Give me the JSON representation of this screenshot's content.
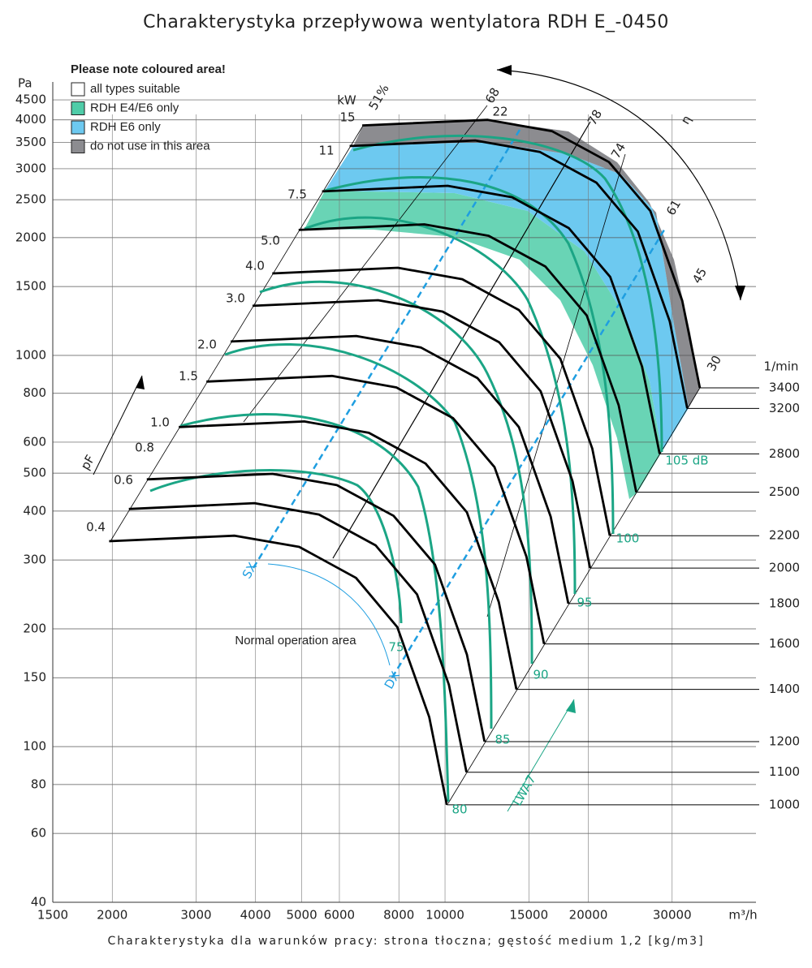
{
  "chart_data": {
    "type": "line",
    "title": "Charakterystyka przepływowa wentylatora RDH E_-0450",
    "footer": "Charakterystyka dla warunków pracy: strona tłoczna; gęstość medium 1,2 [kg/m3]",
    "x_label": "m³/h",
    "y_label": "Pa",
    "rpm_label": "1/min",
    "x_log": true,
    "y_log": true,
    "grid": true,
    "xlim": [
      1500,
      45000
    ],
    "ylim": [
      40,
      5000
    ],
    "xticks": [
      1500,
      2000,
      3000,
      4000,
      5000,
      6000,
      8000,
      10000,
      15000,
      20000,
      30000
    ],
    "yticks": [
      40,
      60,
      80,
      100,
      150,
      200,
      300,
      400,
      500,
      600,
      800,
      1000,
      1500,
      2000,
      2500,
      3000,
      3500,
      4000,
      4500
    ],
    "legend": {
      "title": "Please note coloured area!",
      "corner": "upper left",
      "items": [
        {
          "label": "all types suitable",
          "color": "#ffffff"
        },
        {
          "label": "RDH E4/E6 only",
          "color": "#4fcca8"
        },
        {
          "label": "RDH E6 only",
          "color": "#6dc9f0"
        },
        {
          "label": "do not use in this area",
          "color": "#8c8c90"
        }
      ]
    },
    "annotations": {
      "power_unit": "kW",
      "power_labels": [
        "0.4",
        "0.6",
        "0.8",
        "1.0",
        "1.5",
        "2.0",
        "3.0",
        "4.0",
        "5.0",
        "7.5",
        "11",
        "15",
        "22"
      ],
      "efficiency_labels": [
        "51%",
        "68",
        "78",
        "74",
        "61",
        "45",
        "30"
      ],
      "efficiency_symbol": "η",
      "sound_labels": [
        "75",
        "80",
        "85",
        "90",
        "95",
        "100",
        "105 dB"
      ],
      "sound_symbol": "LWA7",
      "pressure_symbol": "pF",
      "normal_area": "Normal operation area",
      "sx": "SX",
      "dx": "DX"
    },
    "series": [
      {
        "name": "3400",
        "color": "#000000",
        "x": [
          6700,
          12300,
          16800,
          22100,
          27000,
          31500,
          34300
        ],
        "values": [
          3870,
          4000,
          3740,
          3120,
          2340,
          1380,
          826
        ]
      },
      {
        "name": "3200",
        "color": "#000000",
        "x": [
          6306,
          11576,
          15812,
          20800,
          25410,
          29650,
          32280
        ],
        "values": [
          3428,
          3543,
          3313,
          2764,
          2073,
          1222,
          732
        ]
      },
      {
        "name": "2800",
        "color": "#000000",
        "x": [
          5517,
          10129,
          13835,
          18199,
          22235,
          25940,
          28246
        ],
        "values": [
          2625,
          2713,
          2536,
          2116,
          1587,
          936,
          560
        ]
      },
      {
        "name": "2500",
        "color": "#000000",
        "x": [
          4927,
          9044,
          12353,
          16250,
          19853,
          23162,
          25221
        ],
        "values": [
          2092,
          2163,
          2022,
          1687,
          1265,
          746,
          447
        ]
      },
      {
        "name": "2200",
        "color": "#000000",
        "x": [
          4336,
          7959,
          10871,
          14301,
          17472,
          20384,
          22196
        ],
        "values": [
          1620,
          1675,
          1566,
          1306,
          980,
          578,
          346
        ]
      },
      {
        "name": "2000",
        "color": "#000000",
        "x": [
          3941,
          7235,
          9882,
          13000,
          15881,
          18528,
          20175
        ],
        "values": [
          1339,
          1384,
          1294,
          1080,
          810,
          477,
          286
        ]
      },
      {
        "name": "1800",
        "color": "#000000",
        "x": [
          3547,
          6512,
          8894,
          11700,
          14294,
          16676,
          18158
        ],
        "values": [
          1085,
          1121,
          1048,
          875,
          656,
          387,
          232
        ]
      },
      {
        "name": "1600",
        "color": "#000000",
        "x": [
          3153,
          5788,
          7906,
          10400,
          12706,
          14824,
          16142
        ],
        "values": [
          857,
          886,
          828,
          691,
          518,
          306,
          183
        ]
      },
      {
        "name": "1400",
        "color": "#000000",
        "x": [
          2759,
          5065,
          6918,
          9101,
          11119,
          12972,
          14125
        ],
        "values": [
          656,
          678,
          634,
          529,
          397,
          234,
          140
        ]
      },
      {
        "name": "1200",
        "color": "#000000",
        "x": [
          2364,
          4341,
          5929,
          7799,
          9528,
          11116,
          12104
        ],
        "values": [
          482,
          498,
          466,
          389,
          292,
          172,
          103
        ]
      },
      {
        "name": "1100",
        "color": "#000000",
        "x": [
          2167,
          3979,
          5435,
          7149,
          8735,
          10190,
          11096
        ],
        "values": [
          405,
          419,
          392,
          327,
          245,
          144,
          86
        ]
      },
      {
        "name": "1000",
        "color": "#000000",
        "x": [
          1970,
          3617,
          4941,
          6500,
          7941,
          9264,
          10088
        ],
        "values": [
          335,
          346,
          324,
          270,
          202,
          119,
          71
        ]
      }
    ]
  }
}
